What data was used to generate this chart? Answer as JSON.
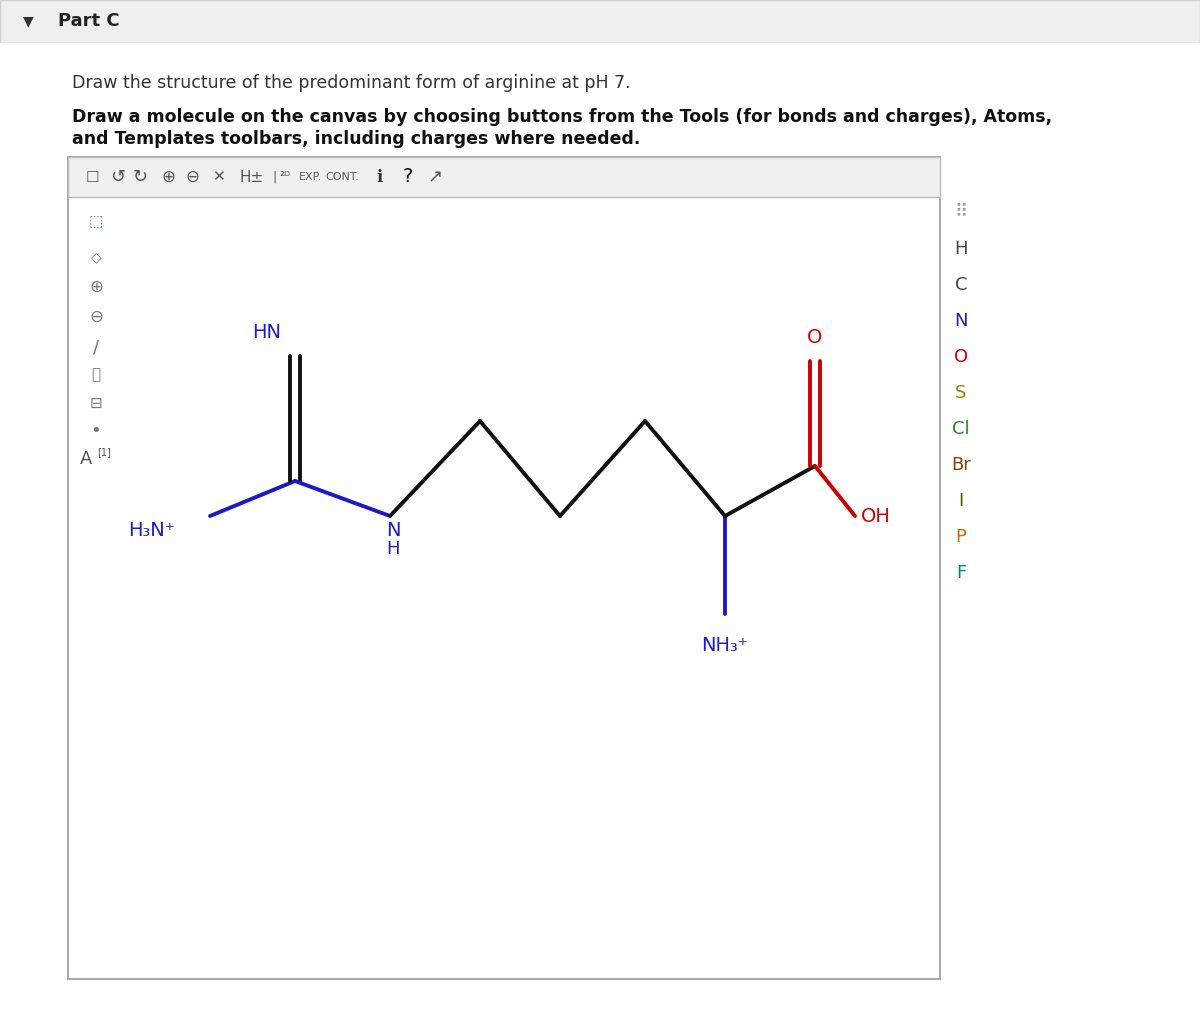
{
  "title": "Part C",
  "subtitle_normal": "Draw the structure of the predominant form of arginine at pH 7.",
  "subtitle_bold_line1": "Draw a molecule on the canvas by choosing buttons from the Tools (for bonds and charges), Atoms,",
  "subtitle_bold_line2": "and Templates toolbars, including charges where needed.",
  "header_color": "#efefef",
  "header_border": "#d0d0d0",
  "body_color": "#ffffff",
  "panel_border": "#b0b0b0",
  "blue": "#1a1acc",
  "red": "#cc0000",
  "black": "#111111",
  "mol_lw": 2.8,
  "right_labels": [
    {
      "text": "H",
      "color": "#444444"
    },
    {
      "text": "C",
      "color": "#444444"
    },
    {
      "text": "N",
      "color": "#1a1acc"
    },
    {
      "text": "O",
      "color": "#cc0000"
    },
    {
      "text": "S",
      "color": "#888800"
    },
    {
      "text": "Cl",
      "color": "#228822"
    },
    {
      "text": "Br",
      "color": "#884400"
    },
    {
      "text": "I",
      "color": "#555500"
    },
    {
      "text": "P",
      "color": "#cc6600"
    },
    {
      "text": "F",
      "color": "#008888"
    }
  ]
}
